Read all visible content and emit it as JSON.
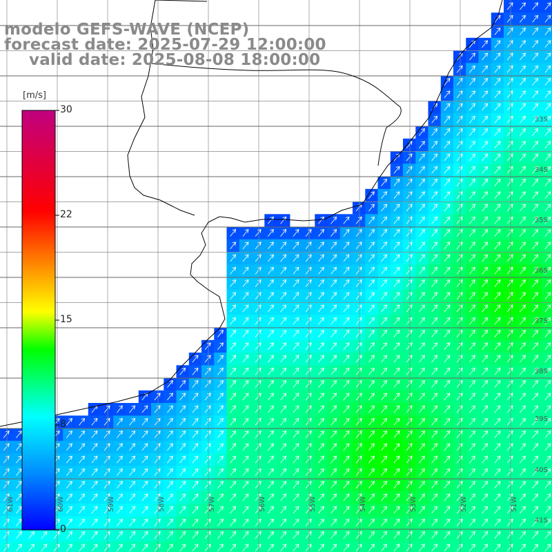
{
  "title": {
    "line1": "modelo GEFS-WAVE (NCEP)",
    "line2": "forecast date: 2025-07-29 12:00:00",
    "line3": "valid date: 2025-08-08 18:00:00"
  },
  "colorbar": {
    "unit": "[m/s]",
    "ticks": [
      "30",
      "22",
      "15",
      "8",
      "0"
    ],
    "range": [
      0,
      30
    ],
    "colors": [
      "#0000ff",
      "#0090ff",
      "#00ffff",
      "#00ff00",
      "#ffff00",
      "#ff8000",
      "#ff0000",
      "#c00080"
    ]
  },
  "lat_labels": [
    "33S",
    "34S",
    "35S",
    "36S",
    "37S",
    "38S",
    "39S",
    "40S",
    "41S"
  ],
  "lon_labels": [
    "61W",
    "60W",
    "59W",
    "58W",
    "57W",
    "56W",
    "55W",
    "54W",
    "53W",
    "52W",
    "51W"
  ],
  "chart_data": {
    "type": "heatmap",
    "variable": "wind speed with direction arrows",
    "unit": "m/s",
    "color_range": [
      0,
      30
    ],
    "lat_range": [
      "32S",
      "41S"
    ],
    "lon_range": [
      "61W",
      "51W"
    ],
    "grid_step_deg": 0.25
  }
}
